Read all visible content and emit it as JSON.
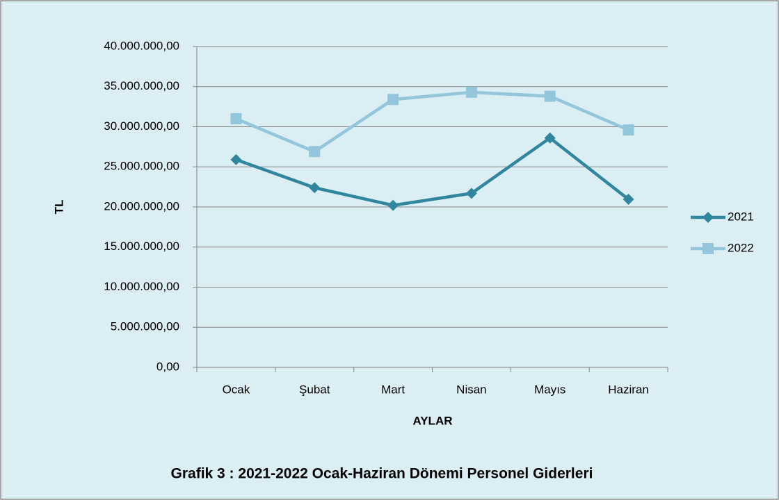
{
  "chart_data": {
    "type": "line",
    "title": "Grafik 3 : 2021-2022 Ocak-Haziran Dönemi Personel Giderleri",
    "x_label": "AYLAR",
    "y_label": "TL",
    "categories": [
      "Ocak",
      "Şubat",
      "Mart",
      "Nisan",
      "Mayıs",
      "Haziran"
    ],
    "series": [
      {
        "name": "2021",
        "color": "#31869f",
        "marker": "diamond",
        "values": [
          25900000,
          22400000,
          20200000,
          21700000,
          28600000,
          20950000
        ]
      },
      {
        "name": "2022",
        "color": "#93c6da",
        "marker": "square",
        "values": [
          31000000,
          26900000,
          33400000,
          34300000,
          33800000,
          29600000
        ]
      }
    ],
    "ylim": [
      0,
      40000000
    ],
    "yticks": [
      {
        "value": 0,
        "label": "0,00"
      },
      {
        "value": 5000000,
        "label": "5.000.000,00"
      },
      {
        "value": 10000000,
        "label": "10.000.000,00"
      },
      {
        "value": 15000000,
        "label": "15.000.000,00"
      },
      {
        "value": 20000000,
        "label": "20.000.000,00"
      },
      {
        "value": 25000000,
        "label": "25.000.000,00"
      },
      {
        "value": 30000000,
        "label": "30.000.000,00"
      },
      {
        "value": 35000000,
        "label": "35.000.000,00"
      },
      {
        "value": 40000000,
        "label": "40.000.000,00"
      }
    ],
    "grid": true,
    "legend": "right"
  }
}
